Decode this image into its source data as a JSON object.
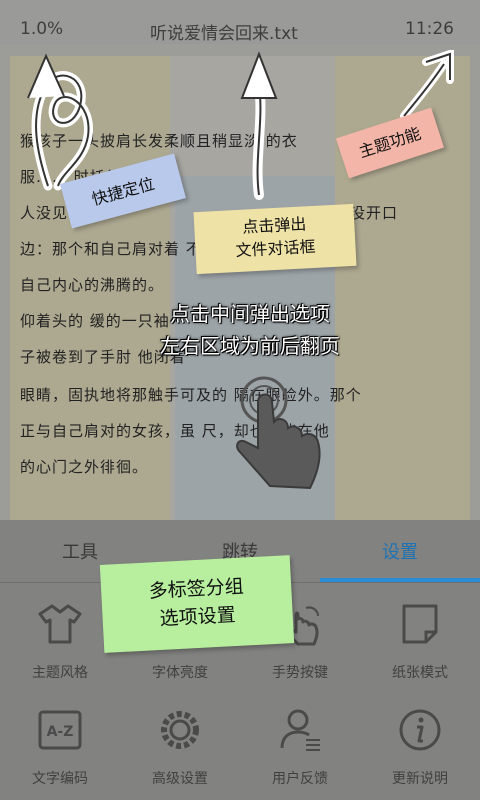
{
  "status_bar": {
    "progress": "1.0%",
    "file_title": "听说爱情会回来.txt",
    "time": "11:26"
  },
  "reader": {
    "lines": [
      "猴孩子一头披肩长发柔顺且稍显淡      的衣",
      "服……      时托得更",
      "人没见   出",
      "没开口",
      "边：那个和自己肩对着     不懂得",
      "自己内心的沸腾的。",
      "    仰着头的    缓的一只袖",
      "子被卷到了手肘   他闭着",
      "眼睛，固执地将那触手可及的    隔在眼睑外。那个",
      "正与自己肩对的女孩，虽    尺，却也只能在他",
      "的心门之外徘徊。"
    ]
  },
  "tips": {
    "quick_locate": "快捷定位",
    "theme_function": "主题功能",
    "file_dialog_line1": "点击弹出",
    "file_dialog_line2": "文件对话框",
    "center_line1": "点击中间弹出选项",
    "center_line2": "左右区域为前后翻页",
    "tab_tip_line1": "多标签分组",
    "tab_tip_line2": "选项设置"
  },
  "toolbar": {
    "tabs": [
      {
        "label": "工具"
      },
      {
        "label": "跳转"
      },
      {
        "label": "设置"
      }
    ],
    "active_tab": "设置",
    "accent_color": "#2b8cd6",
    "items": [
      {
        "label": "主题风格",
        "icon": "shirt-icon"
      },
      {
        "label": "字体亮度",
        "icon": "font-brightness-icon"
      },
      {
        "label": "手势按键",
        "icon": "gesture-icon"
      },
      {
        "label": "纸张模式",
        "icon": "paper-icon"
      },
      {
        "label": "文字编码",
        "icon": "encoding-icon"
      },
      {
        "label": "高级设置",
        "icon": "gear-icon"
      },
      {
        "label": "用户反馈",
        "icon": "user-feedback-icon"
      },
      {
        "label": "更新说明",
        "icon": "info-icon"
      }
    ],
    "encoding_icon_text": "A-Z"
  }
}
